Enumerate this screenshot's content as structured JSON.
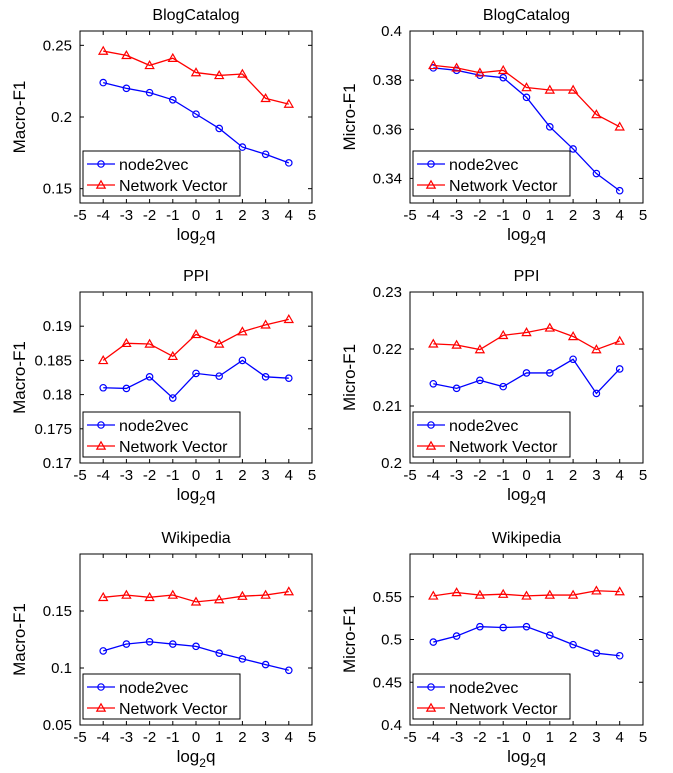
{
  "chart_data": [
    {
      "type": "line",
      "title": "BlogCatalog",
      "xlabel": "log2q",
      "ylabel": "Macro-F1",
      "xlim": [
        -5,
        5
      ],
      "ylim": [
        0.14,
        0.26
      ],
      "xticks": [
        -5,
        -4,
        -3,
        -2,
        -1,
        0,
        1,
        2,
        3,
        4,
        5
      ],
      "xtick_labels": [
        "-5",
        "-4",
        "-3",
        "-2",
        "-1",
        "0",
        "1",
        "2",
        "3",
        "4",
        "5"
      ],
      "yticks": [
        0.15,
        0.2,
        0.25
      ],
      "ytick_labels": [
        "0.15",
        "0.2",
        "0.25"
      ],
      "x": [
        -4,
        -3,
        -2,
        -1,
        0,
        1,
        2,
        3,
        4
      ],
      "legend_position": "bottom-left",
      "series": [
        {
          "name": "node2vec",
          "marker": "circle",
          "color": "#0000ff",
          "values": [
            0.224,
            0.22,
            0.217,
            0.212,
            0.202,
            0.192,
            0.179,
            0.174,
            0.168
          ]
        },
        {
          "name": "Network Vector",
          "marker": "triangle",
          "color": "#ff0000",
          "values": [
            0.246,
            0.243,
            0.236,
            0.241,
            0.231,
            0.229,
            0.23,
            0.213,
            0.209
          ]
        }
      ]
    },
    {
      "type": "line",
      "title": "BlogCatalog",
      "xlabel": "log2q",
      "ylabel": "Micro-F1",
      "xlim": [
        -5,
        5
      ],
      "ylim": [
        0.33,
        0.4
      ],
      "xticks": [
        -5,
        -4,
        -3,
        -2,
        -1,
        0,
        1,
        2,
        3,
        4,
        5
      ],
      "xtick_labels": [
        "-5",
        "-4",
        "-3",
        "-2",
        "-1",
        "0",
        "1",
        "2",
        "3",
        "4",
        "5"
      ],
      "yticks": [
        0.34,
        0.36,
        0.38,
        0.4
      ],
      "ytick_labels": [
        "0.34",
        "0.36",
        "0.38",
        "0.4"
      ],
      "x": [
        -4,
        -3,
        -2,
        -1,
        0,
        1,
        2,
        3,
        4
      ],
      "legend_position": "bottom-left",
      "series": [
        {
          "name": "node2vec",
          "marker": "circle",
          "color": "#0000ff",
          "values": [
            0.385,
            0.384,
            0.382,
            0.381,
            0.373,
            0.361,
            0.352,
            0.342,
            0.335
          ]
        },
        {
          "name": "Network Vector",
          "marker": "triangle",
          "color": "#ff0000",
          "values": [
            0.386,
            0.385,
            0.383,
            0.384,
            0.377,
            0.376,
            0.376,
            0.366,
            0.361
          ]
        }
      ]
    },
    {
      "type": "line",
      "title": "PPI",
      "xlabel": "log2q",
      "ylabel": "Macro-F1",
      "xlim": [
        -5,
        5
      ],
      "ylim": [
        0.17,
        0.195
      ],
      "xticks": [
        -5,
        -4,
        -3,
        -2,
        -1,
        0,
        1,
        2,
        3,
        4,
        5
      ],
      "xtick_labels": [
        "-5",
        "-4",
        "-3",
        "-2",
        "-1",
        "0",
        "1",
        "2",
        "3",
        "4",
        "5"
      ],
      "yticks": [
        0.17,
        0.175,
        0.18,
        0.185,
        0.19
      ],
      "ytick_labels": [
        "0.17",
        "0.175",
        "0.18",
        "0.185",
        "0.19"
      ],
      "x": [
        -4,
        -3,
        -2,
        -1,
        0,
        1,
        2,
        3,
        4
      ],
      "legend_position": "bottom-left",
      "series": [
        {
          "name": "node2vec",
          "marker": "circle",
          "color": "#0000ff",
          "values": [
            0.181,
            0.1809,
            0.1826,
            0.1795,
            0.1831,
            0.1827,
            0.185,
            0.1826,
            0.1824
          ]
        },
        {
          "name": "Network Vector",
          "marker": "triangle",
          "color": "#ff0000",
          "values": [
            0.185,
            0.1875,
            0.1874,
            0.1856,
            0.1888,
            0.1874,
            0.1892,
            0.1902,
            0.191
          ]
        }
      ]
    },
    {
      "type": "line",
      "title": "PPI",
      "xlabel": "log2q",
      "ylabel": "Micro-F1",
      "xlim": [
        -5,
        5
      ],
      "ylim": [
        0.2,
        0.23
      ],
      "xticks": [
        -5,
        -4,
        -3,
        -2,
        -1,
        0,
        1,
        2,
        3,
        4,
        5
      ],
      "xtick_labels": [
        "-5",
        "-4",
        "-3",
        "-2",
        "-1",
        "0",
        "1",
        "2",
        "3",
        "4",
        "5"
      ],
      "yticks": [
        0.2,
        0.21,
        0.22,
        0.23
      ],
      "ytick_labels": [
        "0.2",
        "0.21",
        "0.22",
        "0.23"
      ],
      "x": [
        -4,
        -3,
        -2,
        -1,
        0,
        1,
        2,
        3,
        4
      ],
      "legend_position": "bottom-left",
      "series": [
        {
          "name": "node2vec",
          "marker": "circle",
          "color": "#0000ff",
          "values": [
            0.2139,
            0.2131,
            0.2145,
            0.2134,
            0.2158,
            0.2158,
            0.2182,
            0.2122,
            0.2165
          ]
        },
        {
          "name": "Network Vector",
          "marker": "triangle",
          "color": "#ff0000",
          "values": [
            0.2209,
            0.2207,
            0.2199,
            0.2224,
            0.2229,
            0.2237,
            0.2222,
            0.2199,
            0.2214
          ]
        }
      ]
    },
    {
      "type": "line",
      "title": "Wikipedia",
      "xlabel": "log2q",
      "ylabel": "Macro-F1",
      "xlim": [
        -5,
        5
      ],
      "ylim": [
        0.05,
        0.2
      ],
      "xticks": [
        -5,
        -4,
        -3,
        -2,
        -1,
        0,
        1,
        2,
        3,
        4,
        5
      ],
      "xtick_labels": [
        "-5",
        "-4",
        "-3",
        "-2",
        "-1",
        "0",
        "1",
        "2",
        "3",
        "4",
        "5"
      ],
      "yticks": [
        0.05,
        0.1,
        0.15
      ],
      "ytick_labels": [
        "0.05",
        "0.1",
        "0.15"
      ],
      "x": [
        -4,
        -3,
        -2,
        -1,
        0,
        1,
        2,
        3,
        4
      ],
      "legend_position": "bottom-left",
      "series": [
        {
          "name": "node2vec",
          "marker": "circle",
          "color": "#0000ff",
          "values": [
            0.115,
            0.121,
            0.123,
            0.121,
            0.119,
            0.113,
            0.108,
            0.103,
            0.098
          ]
        },
        {
          "name": "Network Vector",
          "marker": "triangle",
          "color": "#ff0000",
          "values": [
            0.162,
            0.164,
            0.162,
            0.164,
            0.158,
            0.16,
            0.163,
            0.164,
            0.167
          ]
        }
      ]
    },
    {
      "type": "line",
      "title": "Wikipedia",
      "xlabel": "log2q",
      "ylabel": "Micro-F1",
      "xlim": [
        -5,
        5
      ],
      "ylim": [
        0.4,
        0.6
      ],
      "xticks": [
        -5,
        -4,
        -3,
        -2,
        -1,
        0,
        1,
        2,
        3,
        4,
        5
      ],
      "xtick_labels": [
        "-5",
        "-4",
        "-3",
        "-2",
        "-1",
        "0",
        "1",
        "2",
        "3",
        "4",
        "5"
      ],
      "yticks": [
        0.4,
        0.45,
        0.5,
        0.55
      ],
      "ytick_labels": [
        "0.4",
        "0.45",
        "0.5",
        "0.55"
      ],
      "x": [
        -4,
        -3,
        -2,
        -1,
        0,
        1,
        2,
        3,
        4
      ],
      "legend_position": "bottom-left",
      "series": [
        {
          "name": "node2vec",
          "marker": "circle",
          "color": "#0000ff",
          "values": [
            0.497,
            0.504,
            0.515,
            0.514,
            0.515,
            0.505,
            0.494,
            0.484,
            0.481
          ]
        },
        {
          "name": "Network Vector",
          "marker": "triangle",
          "color": "#ff0000",
          "values": [
            0.551,
            0.555,
            0.552,
            0.553,
            0.551,
            0.552,
            0.552,
            0.557,
            0.556
          ]
        }
      ]
    }
  ]
}
